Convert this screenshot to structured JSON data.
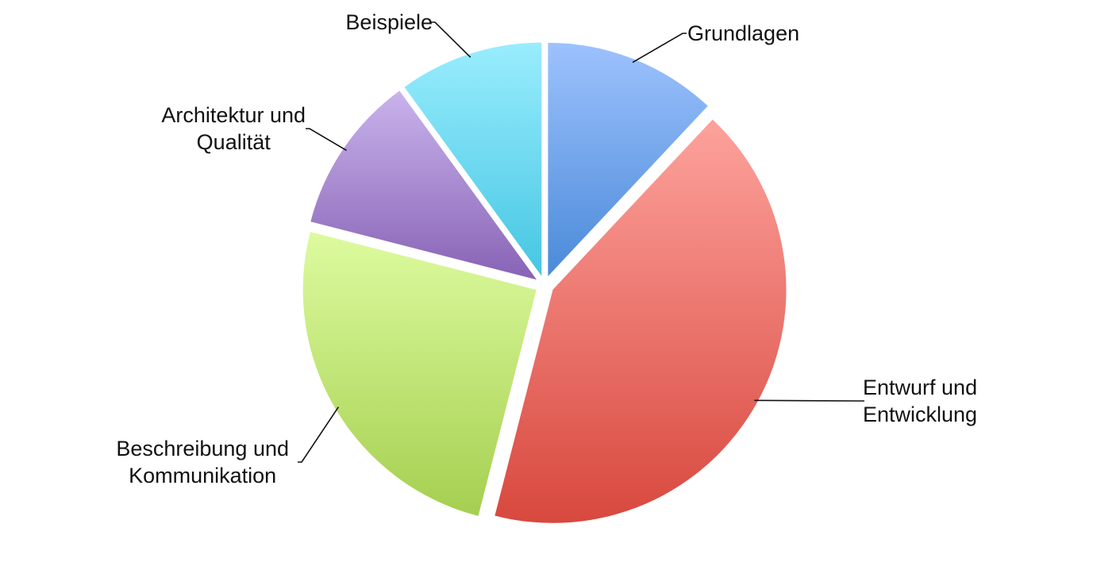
{
  "chart_data": {
    "type": "pie",
    "start_angle_deg": 0,
    "direction": "clockwise",
    "slices": [
      {
        "label": [
          "Grundlagen"
        ],
        "value": 12,
        "colors": [
          "#9dc2fd",
          "#4a8ad9"
        ]
      },
      {
        "label": [
          "Entwurf und",
          "Entwicklung"
        ],
        "value": 42,
        "colors": [
          "#fda29c",
          "#d8483e"
        ]
      },
      {
        "label": [
          "Beschreibung und",
          "Kommunikation"
        ],
        "value": 25,
        "colors": [
          "#ddfb9f",
          "#a5cf50"
        ]
      },
      {
        "label": [
          "Architektur und",
          "Qualität"
        ],
        "value": 11,
        "colors": [
          "#c9b3ec",
          "#8863b5"
        ]
      },
      {
        "label": [
          "Beispiele"
        ],
        "value": 10,
        "colors": [
          "#99edfd",
          "#46c6e3"
        ]
      }
    ]
  }
}
